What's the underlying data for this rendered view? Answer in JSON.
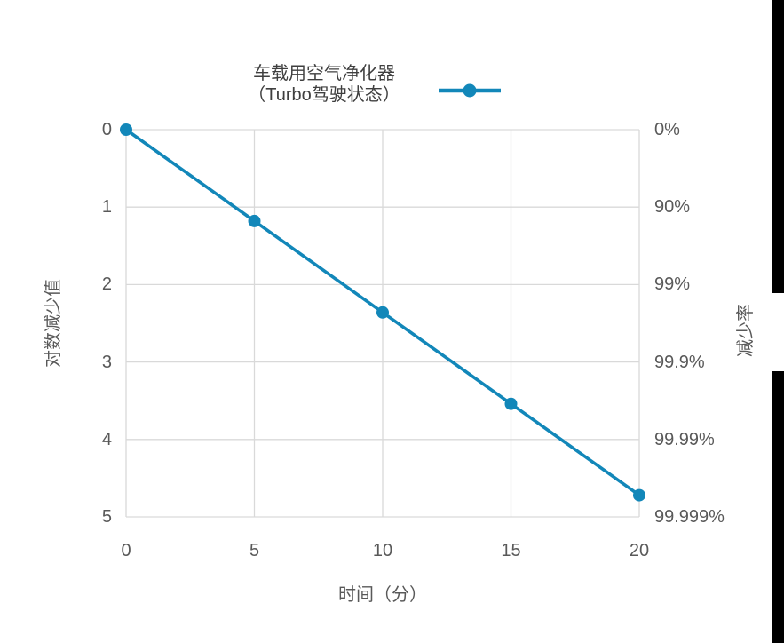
{
  "legend": {
    "label_line1": "车载用空气净化器",
    "label_line2": "（Turbo驾驶状态）"
  },
  "chart_data": {
    "type": "line",
    "title": "车载用空气净化器（Turbo驾驶状态）",
    "x": [
      0,
      5,
      10,
      15,
      20
    ],
    "series": [
      {
        "name": "车载用空气净化器（Turbo驾驶状态）",
        "values": [
          0,
          1.18,
          2.36,
          3.54,
          4.72
        ]
      }
    ],
    "xlabel": "时间（分）",
    "ylabel_left": "对数减少值",
    "ylabel_right": "减少率",
    "x_ticks": [
      "0",
      "5",
      "10",
      "15",
      "20"
    ],
    "y_ticks_left": [
      "0",
      "1",
      "2",
      "3",
      "4",
      "5"
    ],
    "y_ticks_right": [
      "0%",
      "90%",
      "99%",
      "99.9%",
      "99.99%",
      "99.999%"
    ],
    "xlim": [
      0,
      20
    ],
    "ylim": [
      0,
      5
    ],
    "y_axis_inverted": true,
    "grid": true,
    "legend_position": "top",
    "marker": "circle",
    "colors": {
      "series": "#1287b9",
      "grid": "#d9d9d9",
      "tick_text": "#595959",
      "legend_text": "#3f3f3f",
      "edge_bar": "#000000",
      "background": "#ffffff"
    }
  }
}
